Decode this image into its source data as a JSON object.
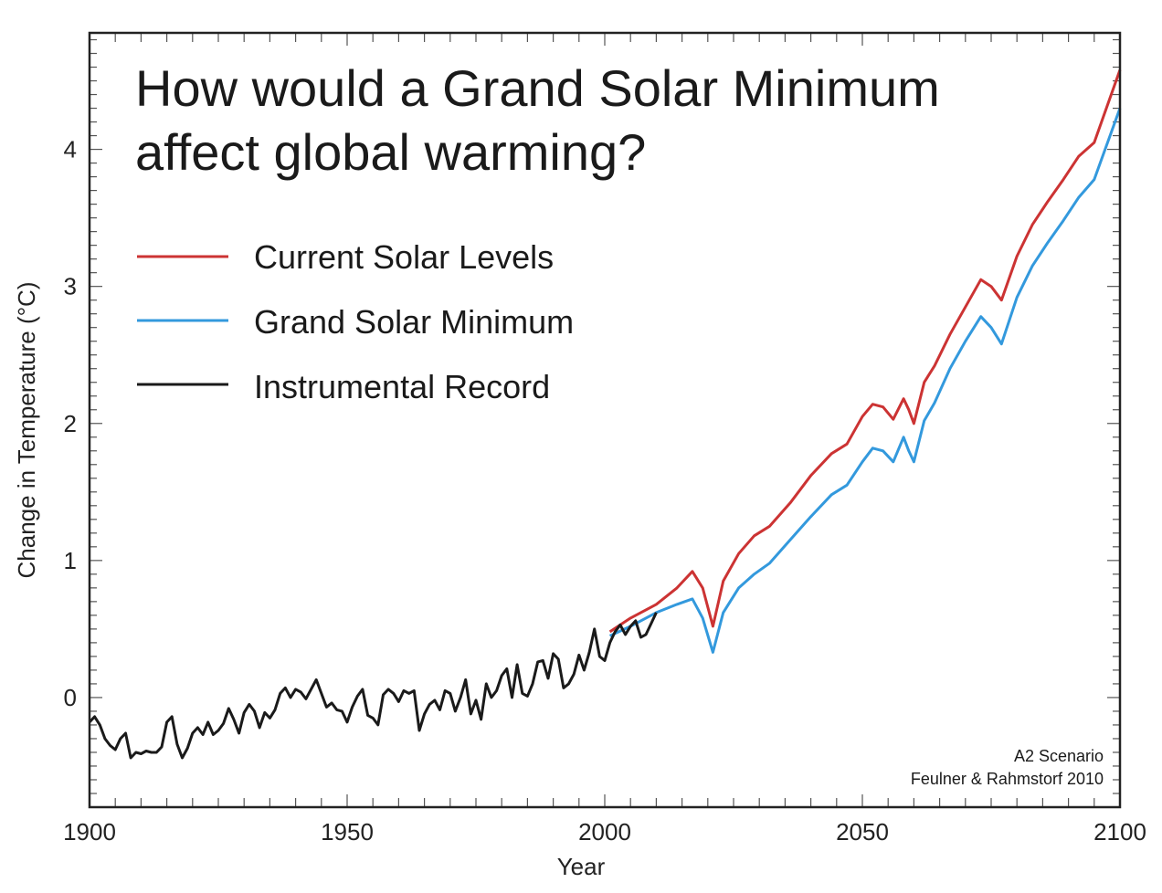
{
  "chart_data": {
    "type": "line",
    "title_lines": [
      "How would a Grand Solar Minimum",
      "affect global warming?"
    ],
    "xlabel": "Year",
    "ylabel": "Change in Temperature (°C)",
    "xlim": [
      1900,
      2100
    ],
    "ylim": [
      -0.8,
      4.85
    ],
    "x_ticks": [
      1900,
      1950,
      2000,
      2050,
      2100
    ],
    "y_ticks": [
      0,
      1,
      2,
      3,
      4
    ],
    "legend_position": "upper-left",
    "annotations": [
      "A2 Scenario",
      "Feulner & Rahmstorf 2010"
    ],
    "series": [
      {
        "name": "Current Solar Levels",
        "color": "#cc3333",
        "x": [
          2001,
          2005,
          2010,
          2014,
          2017,
          2019,
          2021,
          2023,
          2026,
          2029,
          2032,
          2036,
          2040,
          2044,
          2047,
          2050,
          2052,
          2054,
          2056,
          2058,
          2059,
          2060,
          2062,
          2064,
          2067,
          2070,
          2073,
          2075,
          2077,
          2080,
          2083,
          2086,
          2089,
          2092,
          2095,
          2100
        ],
        "y": [
          0.48,
          0.58,
          0.68,
          0.8,
          0.92,
          0.8,
          0.52,
          0.85,
          1.05,
          1.18,
          1.25,
          1.42,
          1.62,
          1.78,
          1.85,
          2.05,
          2.14,
          2.12,
          2.03,
          2.18,
          2.1,
          2.0,
          2.3,
          2.42,
          2.65,
          2.85,
          3.05,
          3.0,
          2.9,
          3.22,
          3.45,
          3.62,
          3.78,
          3.95,
          4.05,
          4.58
        ]
      },
      {
        "name": "Grand Solar Minimum",
        "color": "#3399dd",
        "x": [
          2001,
          2005,
          2010,
          2014,
          2017,
          2019,
          2021,
          2023,
          2026,
          2029,
          2032,
          2036,
          2040,
          2044,
          2047,
          2050,
          2052,
          2054,
          2056,
          2058,
          2059,
          2060,
          2062,
          2064,
          2067,
          2070,
          2073,
          2075,
          2077,
          2080,
          2083,
          2086,
          2089,
          2092,
          2095,
          2100
        ],
        "y": [
          0.45,
          0.52,
          0.62,
          0.68,
          0.72,
          0.58,
          0.33,
          0.62,
          0.8,
          0.9,
          0.98,
          1.15,
          1.32,
          1.48,
          1.55,
          1.72,
          1.82,
          1.8,
          1.72,
          1.9,
          1.8,
          1.72,
          2.02,
          2.15,
          2.4,
          2.6,
          2.78,
          2.7,
          2.58,
          2.92,
          3.15,
          3.32,
          3.48,
          3.65,
          3.78,
          4.3
        ]
      },
      {
        "name": "Instrumental Record",
        "color": "#1a1a1a",
        "x": [
          1900,
          1901,
          1902,
          1903,
          1904,
          1905,
          1906,
          1907,
          1908,
          1909,
          1910,
          1911,
          1912,
          1913,
          1914,
          1915,
          1916,
          1917,
          1918,
          1919,
          1920,
          1921,
          1922,
          1923,
          1924,
          1925,
          1926,
          1927,
          1928,
          1929,
          1930,
          1931,
          1932,
          1933,
          1934,
          1935,
          1936,
          1937,
          1938,
          1939,
          1940,
          1941,
          1942,
          1943,
          1944,
          1945,
          1946,
          1947,
          1948,
          1949,
          1950,
          1951,
          1952,
          1953,
          1954,
          1955,
          1956,
          1957,
          1958,
          1959,
          1960,
          1961,
          1962,
          1963,
          1964,
          1965,
          1966,
          1967,
          1968,
          1969,
          1970,
          1971,
          1972,
          1973,
          1974,
          1975,
          1976,
          1977,
          1978,
          1979,
          1980,
          1981,
          1982,
          1983,
          1984,
          1985,
          1986,
          1987,
          1988,
          1989,
          1990,
          1991,
          1992,
          1993,
          1994,
          1995,
          1996,
          1997,
          1998,
          1999,
          2000,
          2001,
          2002,
          2003,
          2004,
          2005,
          2006,
          2007,
          2008,
          2009,
          2010
        ],
        "y": [
          -0.18,
          -0.14,
          -0.2,
          -0.3,
          -0.35,
          -0.38,
          -0.3,
          -0.26,
          -0.44,
          -0.4,
          -0.41,
          -0.39,
          -0.4,
          -0.4,
          -0.36,
          -0.18,
          -0.14,
          -0.34,
          -0.44,
          -0.37,
          -0.26,
          -0.22,
          -0.27,
          -0.18,
          -0.27,
          -0.24,
          -0.19,
          -0.08,
          -0.16,
          -0.26,
          -0.11,
          -0.05,
          -0.1,
          -0.22,
          -0.11,
          -0.15,
          -0.09,
          0.03,
          0.07,
          0.0,
          0.06,
          0.04,
          -0.01,
          0.06,
          0.13,
          0.03,
          -0.07,
          -0.04,
          -0.09,
          -0.1,
          -0.18,
          -0.07,
          0.01,
          0.06,
          -0.13,
          -0.15,
          -0.2,
          0.02,
          0.06,
          0.03,
          -0.03,
          0.05,
          0.03,
          0.05,
          -0.24,
          -0.12,
          -0.05,
          -0.02,
          -0.09,
          0.05,
          0.03,
          -0.1,
          0.0,
          0.13,
          -0.12,
          -0.02,
          -0.16,
          0.1,
          0.0,
          0.05,
          0.16,
          0.21,
          0.0,
          0.24,
          0.03,
          0.01,
          0.1,
          0.26,
          0.27,
          0.14,
          0.32,
          0.28,
          0.07,
          0.1,
          0.17,
          0.31,
          0.2,
          0.33,
          0.5,
          0.3,
          0.27,
          0.4,
          0.48,
          0.53,
          0.46,
          0.52,
          0.56,
          0.44,
          0.46,
          0.54,
          0.62
        ]
      }
    ]
  }
}
